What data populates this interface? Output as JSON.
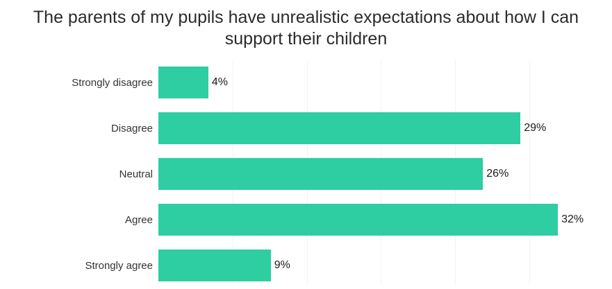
{
  "title": "The parents of my pupils have unrealistic expectations about how I can support their children",
  "chart_data": {
    "type": "bar",
    "orientation": "horizontal",
    "title": "The parents of my pupils have unrealistic expectations about how I can support their children",
    "categories": [
      "Strongly disagree",
      "Disagree",
      "Neutral",
      "Agree",
      "Strongly agree"
    ],
    "values": [
      4,
      29,
      26,
      32,
      9
    ],
    "value_labels": [
      "4%",
      "29%",
      "26%",
      "32%",
      "9%"
    ],
    "xlabel": "",
    "ylabel": "",
    "xlim": [
      0,
      36
    ],
    "grid": "faint-vertical",
    "legend": "none",
    "bar_color": "#2ecda2",
    "background_color": "#ffffff",
    "title_color": "#2b2b2b",
    "label_color": "#333333"
  }
}
